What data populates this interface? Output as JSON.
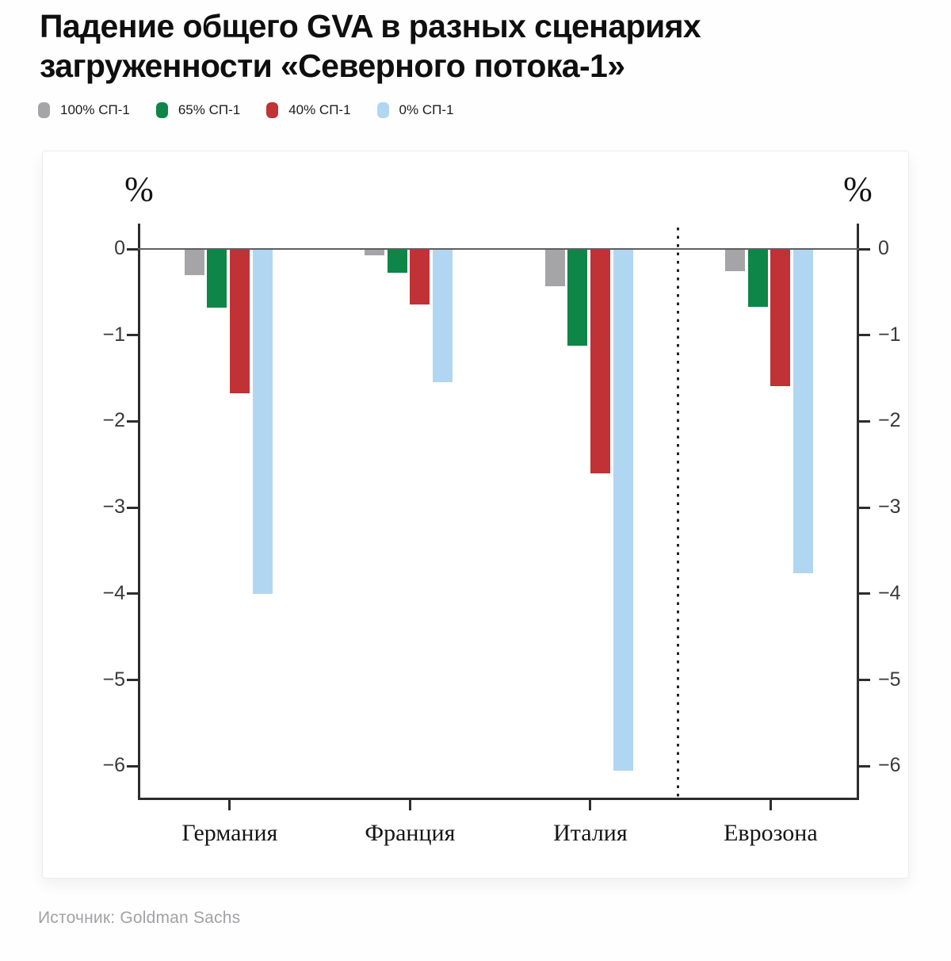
{
  "title": "Падение общего GVA в разных сценариях загруженности «Северного потока-1»",
  "source": "Источник: Goldman Sachs",
  "chart_data": {
    "type": "bar",
    "title": "Падение общего GVA в разных сценариях загруженности «Северного потока-1»",
    "ylabel": "%",
    "categories": [
      "Германия",
      "Франция",
      "Италия",
      "Еврозона"
    ],
    "series": [
      {
        "name": "100% СП-1",
        "color": "#a5a5a7",
        "values": [
          -0.3,
          -0.07,
          -0.43,
          -0.26
        ]
      },
      {
        "name": "65% СП-1",
        "color": "#0d8647",
        "values": [
          -0.68,
          -0.28,
          -1.12,
          -0.67
        ]
      },
      {
        "name": "40% СП-1",
        "color": "#c03236",
        "values": [
          -1.67,
          -0.64,
          -2.6,
          -1.59
        ]
      },
      {
        "name": "0% СП-1",
        "color": "#b1d6f1",
        "values": [
          -4.0,
          -1.55,
          -6.05,
          -3.76
        ]
      }
    ],
    "yticks": [
      0,
      -1,
      -2,
      -3,
      -4,
      -5,
      -6
    ],
    "ylim": [
      0.3,
      -6.4
    ],
    "grid": false,
    "legend_position": "top",
    "divider_between": [
      "Италия",
      "Еврозона"
    ],
    "axis_color": "#2d2d2e",
    "tick_label_color": "#3a3a3c"
  }
}
